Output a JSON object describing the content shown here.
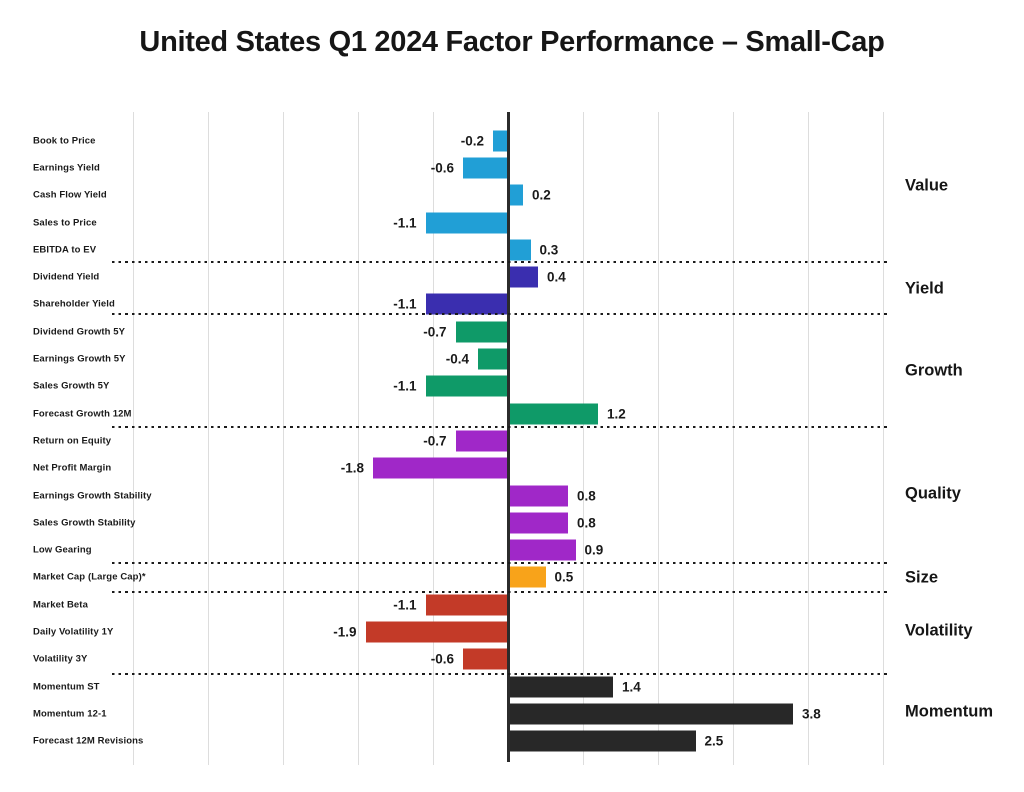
{
  "title": "United States Q1 2024 Factor Performance – Small-Cap",
  "chart_data": {
    "type": "bar",
    "orientation": "horizontal",
    "title": "United States Q1 2024 Factor Performance – Small-Cap",
    "xlim": [
      -5,
      5
    ],
    "gridline_step": 1,
    "grid": true,
    "value_label_decimals": 1,
    "groups": [
      {
        "name": "Value",
        "color": "#219FD6"
      },
      {
        "name": "Yield",
        "color": "#3A2EAF"
      },
      {
        "name": "Growth",
        "color": "#0F9A68"
      },
      {
        "name": "Quality",
        "color": "#A028C8"
      },
      {
        "name": "Size",
        "color": "#F8A31A"
      },
      {
        "name": "Volatility",
        "color": "#C33A28"
      },
      {
        "name": "Momentum",
        "color": "#282828"
      }
    ],
    "rows": [
      {
        "label": "Book to Price",
        "value": -0.2,
        "group": "Value"
      },
      {
        "label": "Earnings Yield",
        "value": -0.6,
        "group": "Value"
      },
      {
        "label": "Cash Flow Yield",
        "value": 0.2,
        "group": "Value"
      },
      {
        "label": "Sales to Price",
        "value": -1.1,
        "group": "Value"
      },
      {
        "label": "EBITDA to EV",
        "value": 0.3,
        "group": "Value"
      },
      {
        "label": "Dividend Yield",
        "value": 0.4,
        "group": "Yield"
      },
      {
        "label": "Shareholder Yield",
        "value": -1.1,
        "group": "Yield"
      },
      {
        "label": "Dividend Growth 5Y",
        "value": -0.7,
        "group": "Growth"
      },
      {
        "label": "Earnings Growth 5Y",
        "value": -0.4,
        "group": "Growth"
      },
      {
        "label": "Sales Growth 5Y",
        "value": -1.1,
        "group": "Growth"
      },
      {
        "label": "Forecast Growth 12M",
        "value": 1.2,
        "group": "Growth"
      },
      {
        "label": "Return on Equity",
        "value": -0.7,
        "group": "Quality"
      },
      {
        "label": "Net Profit Margin",
        "value": -1.8,
        "group": "Quality"
      },
      {
        "label": "Earnings Growth Stability",
        "value": 0.8,
        "group": "Quality"
      },
      {
        "label": "Sales Growth Stability",
        "value": 0.8,
        "group": "Quality"
      },
      {
        "label": "Low Gearing",
        "value": 0.9,
        "group": "Quality"
      },
      {
        "label": "Market Cap (Large Cap)*",
        "value": 0.5,
        "group": "Size"
      },
      {
        "label": "Market Beta",
        "value": -1.1,
        "group": "Volatility"
      },
      {
        "label": "Daily Volatility 1Y",
        "value": -1.9,
        "group": "Volatility"
      },
      {
        "label": "Volatility 3Y",
        "value": -0.6,
        "group": "Volatility"
      },
      {
        "label": "Momentum ST",
        "value": 1.4,
        "group": "Momentum"
      },
      {
        "label": "Momentum 12-1",
        "value": 3.8,
        "group": "Momentum"
      },
      {
        "label": "Forecast 12M Revisions",
        "value": 2.5,
        "group": "Momentum"
      }
    ],
    "colors": {
      "axis": "#2b2b2b",
      "gridline": "#dddddd",
      "separator_dots": "#1b1b1b",
      "text": "#1a1a1a",
      "background": "#ffffff"
    }
  }
}
